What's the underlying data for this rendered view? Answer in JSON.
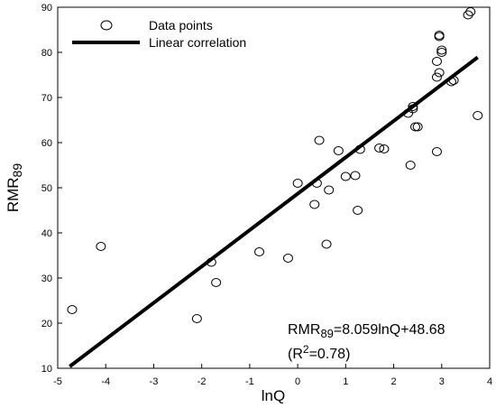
{
  "chart_data": {
    "type": "scatter",
    "title": "",
    "xlabel": "lnQ",
    "ylabel_main": "RMR",
    "ylabel_sub": "89",
    "xlim": [
      -5,
      4
    ],
    "ylim": [
      10,
      90
    ],
    "xticks": [
      -5,
      -4,
      -3,
      -2,
      -1,
      0,
      1,
      2,
      3,
      4
    ],
    "yticks": [
      10,
      20,
      30,
      40,
      50,
      60,
      70,
      80,
      90
    ],
    "grid": false,
    "legend": {
      "position": "top-left",
      "points_label": "Data points",
      "line_label": "Linear correlation"
    },
    "series": [
      {
        "name": "Data points",
        "points": [
          [
            -4.7,
            23
          ],
          [
            -4.1,
            37
          ],
          [
            -2.1,
            21
          ],
          [
            -1.8,
            33.5
          ],
          [
            -1.7,
            29
          ],
          [
            -0.8,
            35.8
          ],
          [
            -0.2,
            34.4
          ],
          [
            0,
            51
          ],
          [
            0.35,
            46.3
          ],
          [
            0.4,
            51
          ],
          [
            0.45,
            60.5
          ],
          [
            0.6,
            37.5
          ],
          [
            0.65,
            49.5
          ],
          [
            0.85,
            58.2
          ],
          [
            1.0,
            52.5
          ],
          [
            1.2,
            52.7
          ],
          [
            1.25,
            45
          ],
          [
            1.3,
            58.5
          ],
          [
            1.7,
            58.8
          ],
          [
            1.8,
            58.6
          ],
          [
            2.3,
            66.5
          ],
          [
            2.35,
            55
          ],
          [
            2.4,
            67.5
          ],
          [
            2.4,
            68
          ],
          [
            2.45,
            63.5
          ],
          [
            2.5,
            63.5
          ],
          [
            2.9,
            58
          ],
          [
            2.9,
            74.5
          ],
          [
            2.9,
            78
          ],
          [
            2.95,
            75.5
          ],
          [
            2.95,
            83.8
          ],
          [
            2.95,
            83.5
          ],
          [
            3.0,
            80
          ],
          [
            3.0,
            80.5
          ],
          [
            3.2,
            73.5
          ],
          [
            3.25,
            73.8
          ],
          [
            3.55,
            88.3
          ],
          [
            3.6,
            89
          ],
          [
            3.75,
            66
          ]
        ]
      },
      {
        "name": "Linear correlation",
        "type": "line",
        "slope": 8.059,
        "intercept": 48.68,
        "x_range": [
          -4.75,
          3.75
        ]
      }
    ],
    "annotations": {
      "equation_prefix": "RMR",
      "equation_sub": "89",
      "equation_rest": "=8.059lnQ+48.68",
      "r2_open": "(R",
      "r2_sup": "2",
      "r2_close": "=0.78)"
    }
  }
}
